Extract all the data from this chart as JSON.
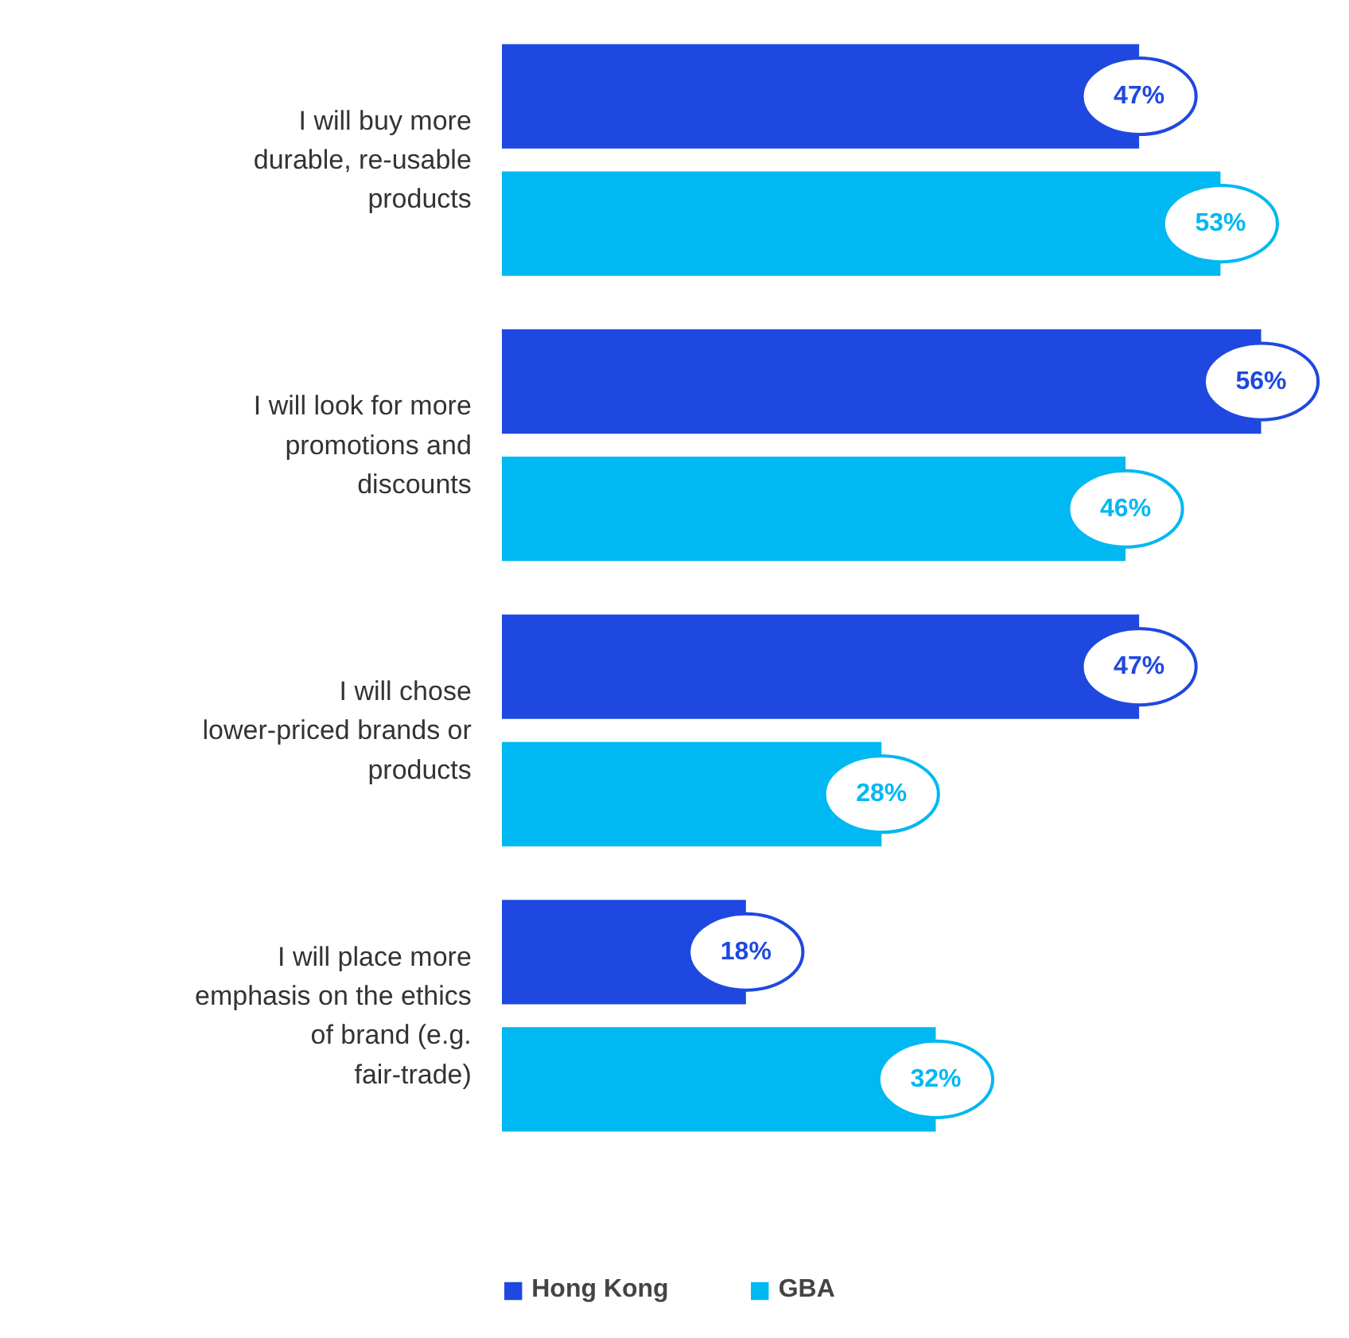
{
  "chart_data": {
    "type": "bar",
    "orientation": "horizontal",
    "legend": "bottom",
    "categories": [
      "I will buy more durable, re-usable products",
      "I will look for more promotions and discounts",
      "I will chose lower-priced brands or products",
      "I will place more emphasis on the ethics of brand (e.g. fair-trade)"
    ],
    "series": [
      {
        "name": "Hong Kong",
        "color": "#1f48e0",
        "values": [
          47,
          56,
          47,
          18
        ],
        "value_labels": [
          "47%",
          "56%",
          "47%",
          "18%"
        ]
      },
      {
        "name": "GBA",
        "color": "#00b8f2",
        "values": [
          53,
          46,
          28,
          32
        ],
        "value_labels": [
          "53%",
          "46%",
          "28%",
          "32%"
        ]
      }
    ]
  }
}
